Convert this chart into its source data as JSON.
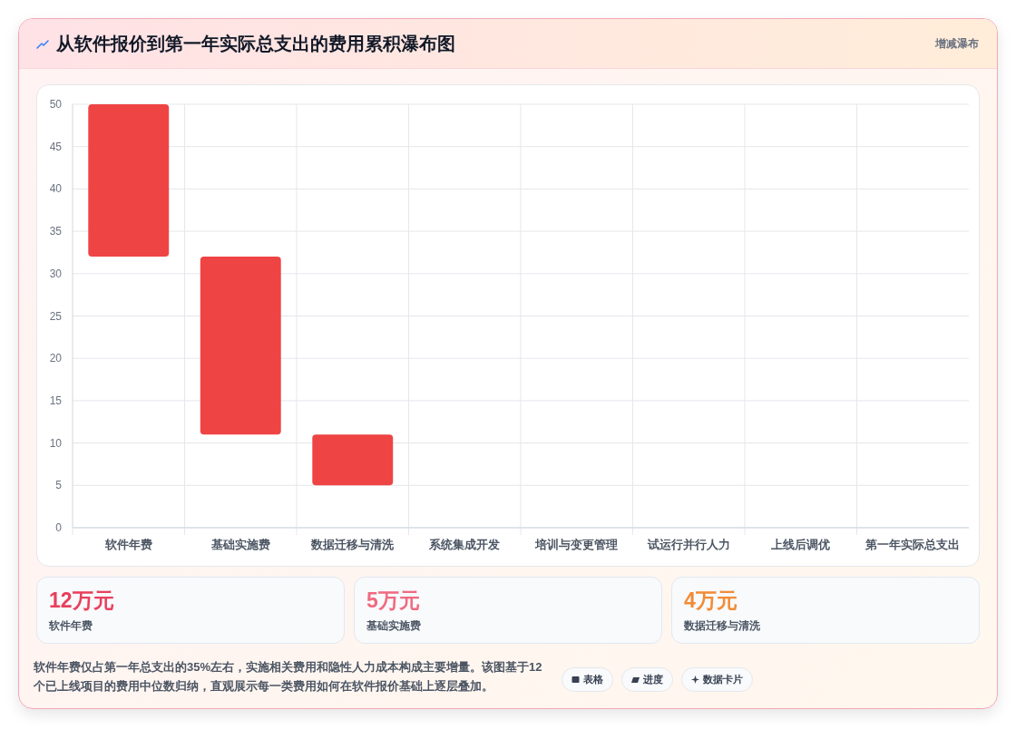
{
  "chart_data": [
    {
      "type": "bar",
      "title": "从软件报价到第一年实际总支出的费用累积瀑布图",
      "subtitle": "增减瀑布",
      "categories": [
        "软件年费",
        "基础实施费",
        "数据迁移与清洗",
        "系统集成开发",
        "培训与变更管理",
        "试运行并行人力",
        "上线后调优",
        "第一年实际总支出"
      ],
      "values": [
        18,
        21,
        6,
        null,
        null,
        null,
        null,
        null
      ],
      "base": [
        32,
        11,
        5,
        null,
        null,
        null,
        null,
        null
      ],
      "color": "#ef4444",
      "ylim": [
        0,
        50
      ],
      "yticks": [
        0,
        5,
        10,
        15,
        20,
        25,
        30,
        35,
        40,
        45,
        50
      ],
      "grid": true,
      "annotations": [
        "软件年费仅占第一年总支出的35%左右，实施相关费用和隐性人力成本构成主要增量。该图基于12个已上线项目的费用中位数归纳，直观展示每一类费用如何在软件报价基础上逐层叠加。",
        "表格",
        "进度",
        "数据卡片"
      ]
    },
    {
      "type": "other",
      "annotations": [
        "12万元",
        "软件年费",
        "5万元",
        "基础实施费",
        "4万元",
        "数据迁移与清洗"
      ],
      "colors": [
        "#e8405c",
        "#f06a80",
        "#f28b36"
      ]
    }
  ]
}
